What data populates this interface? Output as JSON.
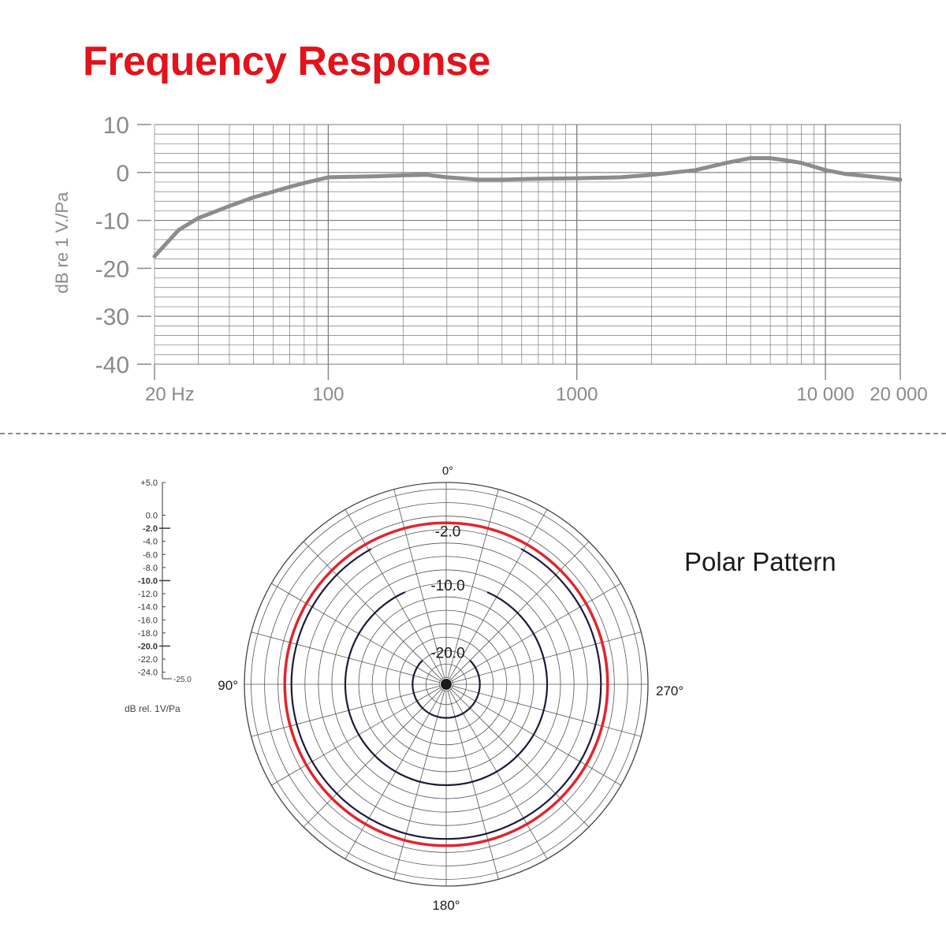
{
  "title": "Frequency Response",
  "title_color": "#e3121b",
  "polar_title": "Polar Pattern",
  "chart_data": [
    {
      "type": "line",
      "x_scale": "log",
      "xlim": [
        20,
        20000
      ],
      "ylim": [
        -40,
        10
      ],
      "ylabel": "dB re 1 V./Pa",
      "x_tick_labels": [
        {
          "value": 20,
          "label": "20 Hz"
        },
        {
          "value": 100,
          "label": "100"
        },
        {
          "value": 1000,
          "label": "1000"
        },
        {
          "value": 10000,
          "label": "10 000"
        },
        {
          "value": 20000,
          "label": "20 000"
        }
      ],
      "y_tick_labels": [
        {
          "value": 10,
          "label": "10"
        },
        {
          "value": 0,
          "label": "0"
        },
        {
          "value": -10,
          "label": "-10"
        },
        {
          "value": -20,
          "label": "-20"
        },
        {
          "value": -30,
          "label": "-30"
        },
        {
          "value": -40,
          "label": "-40"
        }
      ],
      "grid": true,
      "line_color": "#8c8c8c",
      "series": [
        {
          "x": [
            20,
            25,
            30,
            40,
            50,
            60,
            70,
            80,
            100,
            150,
            200,
            250,
            300,
            400,
            500,
            700,
            1000,
            1500,
            2000,
            3000,
            4000,
            5000,
            6000,
            7000,
            8000,
            10000,
            12000,
            15000,
            20000
          ],
          "y": [
            -17.5,
            -12,
            -9.5,
            -7,
            -5.2,
            -4,
            -3,
            -2.2,
            -1,
            -0.8,
            -0.6,
            -0.5,
            -1,
            -1.5,
            -1.5,
            -1.3,
            -1.2,
            -1,
            -0.5,
            0.5,
            2,
            3,
            3,
            2.5,
            2,
            0.5,
            -0.3,
            -0.8,
            -1.5
          ]
        }
      ]
    },
    {
      "type": "polar",
      "angle_labels": [
        {
          "angle": 0,
          "label": "0°"
        },
        {
          "angle": 90,
          "label": "90°"
        },
        {
          "angle": 180,
          "label": "180°"
        },
        {
          "angle": 270,
          "label": "270°"
        }
      ],
      "angle_direction": "counterclockwise",
      "r_range": [
        -25,
        5
      ],
      "ring_labels": [
        {
          "value": -2,
          "label": "-2.0"
        },
        {
          "value": -10,
          "label": "-10.0"
        },
        {
          "value": -20,
          "label": "-20.0"
        }
      ],
      "scale_labels": [
        {
          "value": 5,
          "label": "+5.0"
        },
        {
          "value": 0,
          "label": "0.0"
        },
        {
          "value": -2,
          "label": "-2.0",
          "bold": true
        },
        {
          "value": -4,
          "label": "-4.0"
        },
        {
          "value": -6,
          "label": "-6.0"
        },
        {
          "value": -8,
          "label": "-8.0"
        },
        {
          "value": -10,
          "label": "-10.0",
          "bold": true
        },
        {
          "value": -12,
          "label": "-12.0"
        },
        {
          "value": -14,
          "label": "-14.0"
        },
        {
          "value": -16,
          "label": "-16.0"
        },
        {
          "value": -18,
          "label": "-18.0"
        },
        {
          "value": -20,
          "label": "-20.0",
          "bold": true
        },
        {
          "value": -22,
          "label": "-22.0"
        },
        {
          "value": -24,
          "label": "-24.0"
        },
        {
          "value": -25,
          "label": "-25.0"
        }
      ],
      "unit_label": "dB rel. 1V/Pa",
      "pattern": "omnidirectional",
      "pattern_value": -1,
      "pattern_color": "#e0262e",
      "grid": true
    }
  ]
}
